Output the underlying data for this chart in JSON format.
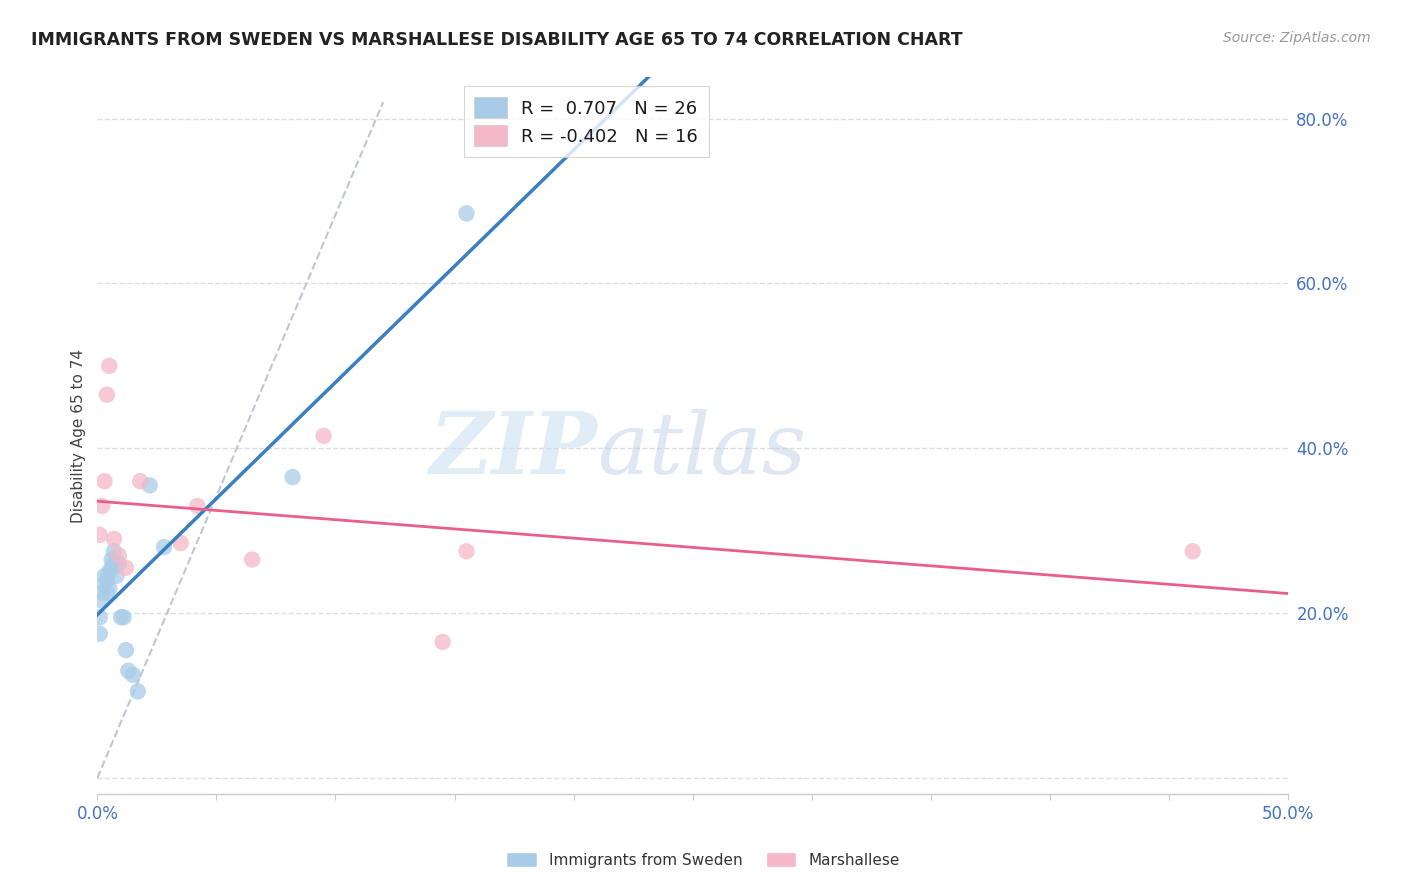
{
  "title": "IMMIGRANTS FROM SWEDEN VS MARSHALLESE DISABILITY AGE 65 TO 74 CORRELATION CHART",
  "source": "Source: ZipAtlas.com",
  "ylabel": "Disability Age 65 to 74",
  "xlim": [
    0.0,
    0.5
  ],
  "ylim": [
    -0.02,
    0.85
  ],
  "sweden_x": [
    0.001,
    0.001,
    0.002,
    0.002,
    0.003,
    0.003,
    0.004,
    0.004,
    0.005,
    0.005,
    0.006,
    0.006,
    0.007,
    0.007,
    0.008,
    0.009,
    0.01,
    0.011,
    0.012,
    0.013,
    0.015,
    0.017,
    0.022,
    0.028,
    0.082,
    0.155
  ],
  "sweden_y": [
    0.175,
    0.195,
    0.215,
    0.225,
    0.235,
    0.245,
    0.225,
    0.24,
    0.23,
    0.25,
    0.255,
    0.265,
    0.26,
    0.275,
    0.245,
    0.26,
    0.195,
    0.195,
    0.155,
    0.13,
    0.125,
    0.105,
    0.355,
    0.28,
    0.365,
    0.685
  ],
  "marshallese_x": [
    0.001,
    0.002,
    0.003,
    0.004,
    0.005,
    0.007,
    0.009,
    0.012,
    0.018,
    0.035,
    0.042,
    0.065,
    0.095,
    0.145,
    0.155,
    0.46
  ],
  "marshallese_y": [
    0.295,
    0.33,
    0.36,
    0.465,
    0.5,
    0.29,
    0.27,
    0.255,
    0.36,
    0.285,
    0.33,
    0.265,
    0.415,
    0.165,
    0.275,
    0.275
  ],
  "sweden_color": "#a8cce8",
  "marshallese_color": "#f4b8c8",
  "sweden_line_color": "#3a7fc1",
  "marshallese_line_color": "#e8608a",
  "R_sweden": 0.707,
  "N_sweden": 26,
  "R_marshallese": -0.402,
  "N_marshallese": 16,
  "watermark_zip": "ZIP",
  "watermark_atlas": "atlas",
  "background_color": "#ffffff",
  "grid_color": "#dddddd",
  "legend_text_color": "#4472c4",
  "axis_tick_color": "#4472c4",
  "title_color": "#222222"
}
